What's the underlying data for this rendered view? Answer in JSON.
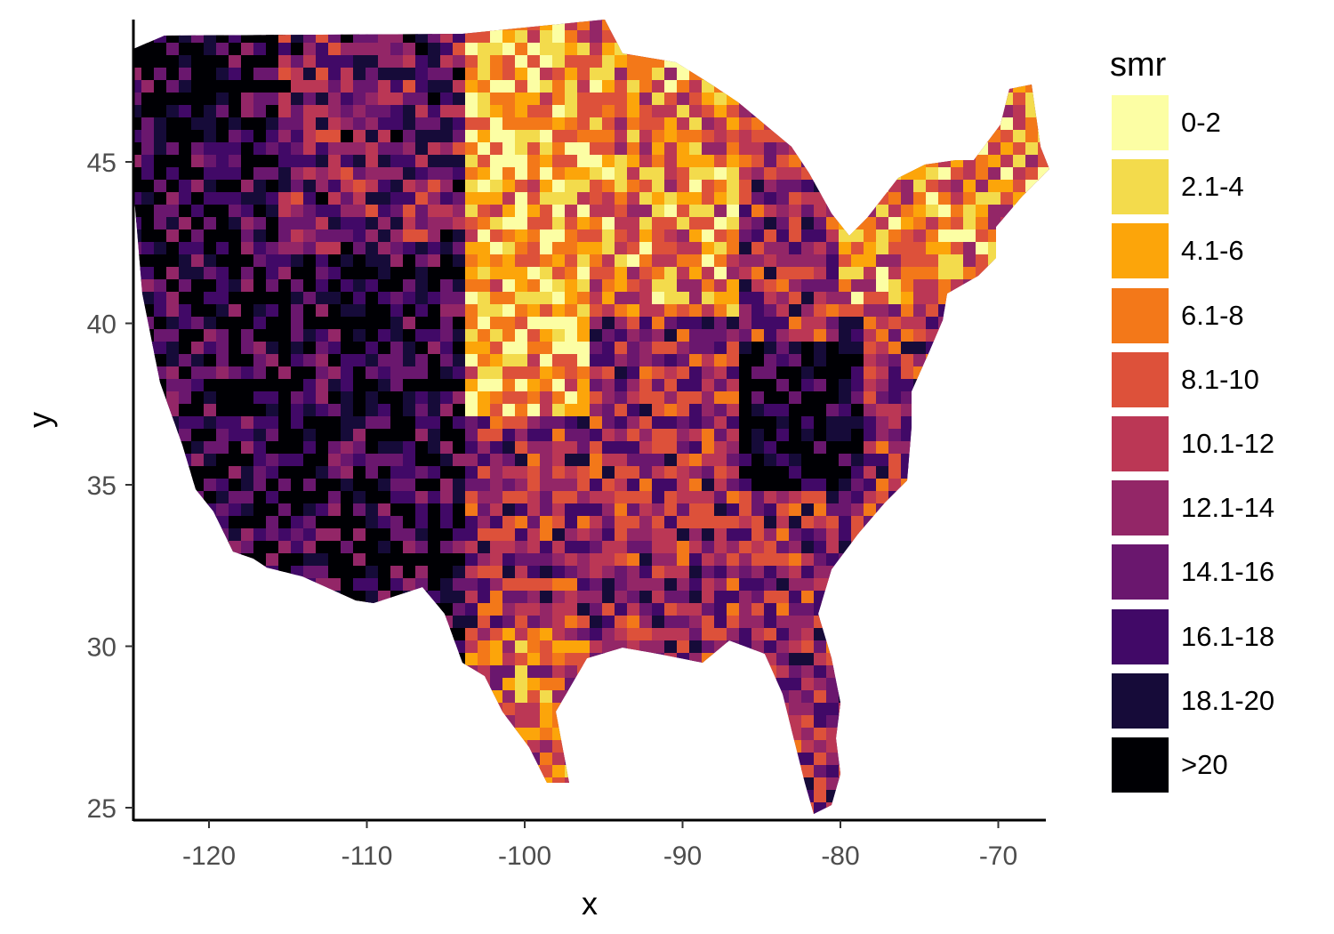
{
  "map": {
    "xlabel": "x",
    "ylabel": "y",
    "x_ticks": [
      -120,
      -110,
      -100,
      -90,
      -80,
      -70
    ],
    "y_ticks": [
      25,
      30,
      35,
      40,
      45
    ],
    "xlim": [
      -125,
      -67
    ],
    "ylim": [
      24.5,
      49.5
    ]
  },
  "legend": {
    "title": "smr",
    "items": [
      {
        "label": "0-2",
        "color": "#fcfea4"
      },
      {
        "label": "2.1-4",
        "color": "#f3db4c"
      },
      {
        "label": "4.1-6",
        "color": "#fca50a"
      },
      {
        "label": "6.1-8",
        "color": "#f37819"
      },
      {
        "label": "8.1-10",
        "color": "#dd513a"
      },
      {
        "label": "10.1-12",
        "color": "#bb3755"
      },
      {
        "label": "12.1-14",
        "color": "#932667"
      },
      {
        "label": "14.1-16",
        "color": "#6a176e"
      },
      {
        "label": "16.1-18",
        "color": "#410967"
      },
      {
        "label": "18.1-20",
        "color": "#160b39"
      },
      {
        "label": ">20",
        "color": "#000004"
      }
    ]
  }
}
